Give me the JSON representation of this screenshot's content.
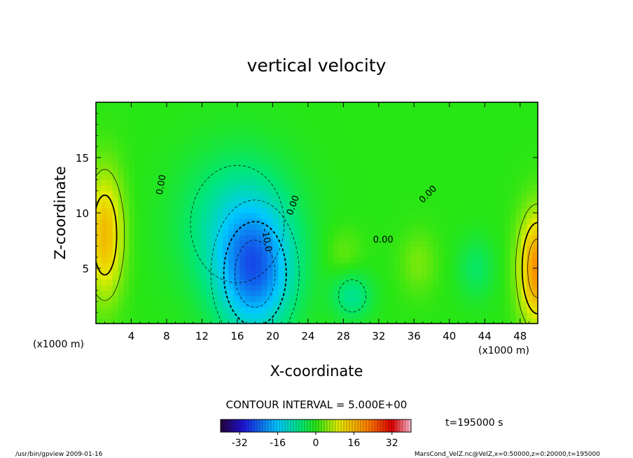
{
  "chart_data": {
    "type": "heatmap",
    "title": "vertical velocity",
    "xlabel": "X-coordinate",
    "ylabel": "Z-coordinate",
    "x_unit_left": "(x1000 m)",
    "x_unit_right": "(x1000 m)",
    "xlim": [
      0,
      50
    ],
    "ylim": [
      0,
      20
    ],
    "x_ticks": [
      "4",
      "8",
      "12",
      "16",
      "20",
      "24",
      "28",
      "32",
      "36",
      "40",
      "44",
      "48"
    ],
    "x_tick_values": [
      4,
      8,
      12,
      16,
      20,
      24,
      28,
      32,
      36,
      40,
      44,
      48
    ],
    "y_ticks": [
      "5",
      "10",
      "15"
    ],
    "y_tick_values": [
      5,
      10,
      15
    ],
    "contour_interval_text": "CONTOUR INTERVAL = 5.000E+00",
    "time_text": "t=195000 s",
    "contour_labels": [
      {
        "text": "0.00",
        "x": 7.7,
        "y": 12.5,
        "angle": -80
      },
      {
        "text": "0.00",
        "x": 22.6,
        "y": 10.6,
        "angle": -70
      },
      {
        "text": "-10.0",
        "x": 19.0,
        "y": 7.5,
        "angle": 80
      },
      {
        "text": "0.00",
        "x": 32.5,
        "y": 7.3,
        "angle": 0
      },
      {
        "text": "0.00",
        "x": 37.8,
        "y": 11.5,
        "angle": -45
      }
    ],
    "extrema": [
      {
        "kind": "min",
        "x": 18,
        "y": 4.5,
        "value": -20,
        "sx": 3.0,
        "sy": 4.0
      },
      {
        "kind": "min",
        "x": 16,
        "y": 9,
        "value": -10,
        "sx": 4.5,
        "sy": 4.5
      },
      {
        "kind": "min",
        "x": 29,
        "y": 2.5,
        "value": -8,
        "sx": 1.6,
        "sy": 1.5
      },
      {
        "kind": "min",
        "x": 43,
        "y": 5,
        "value": -5,
        "sx": 1.5,
        "sy": 2.0
      },
      {
        "kind": "max",
        "x": 1,
        "y": 8,
        "value": 15,
        "sx": 1.5,
        "sy": 4.0
      },
      {
        "kind": "max",
        "x": 50,
        "y": 5,
        "value": 20,
        "sx": 1.5,
        "sy": 3.5
      },
      {
        "kind": "max",
        "x": 36.5,
        "y": 5.5,
        "value": 4,
        "sx": 1.5,
        "sy": 2.0
      },
      {
        "kind": "max",
        "x": 28,
        "y": 6.5,
        "value": 3,
        "sx": 1.5,
        "sy": 1.5
      }
    ],
    "colorbar": {
      "min": -40,
      "max": 40,
      "ticks": [
        "-32",
        "-16",
        "0",
        "16",
        "32"
      ],
      "tick_values": [
        -32,
        -16,
        0,
        16,
        32
      ]
    }
  },
  "footer": {
    "left": "/usr/bin/gpview   2009-01-16",
    "right": "MarsCond_VelZ.nc@VelZ,x=0:50000,z=0:20000,t=195000"
  }
}
